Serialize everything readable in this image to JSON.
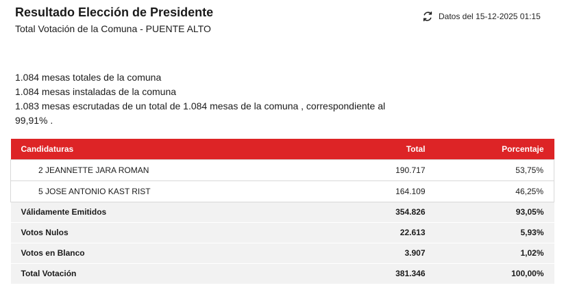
{
  "header": {
    "title": "Resultado Elección de Presidente",
    "subtitle": "Total Votación de la Comuna - PUENTE ALTO"
  },
  "update": {
    "icon": "refresh-icon",
    "text": "Datos del 15-12-2025 01:15"
  },
  "info": {
    "line1": "1.084 mesas totales de la comuna",
    "line2": "1.084 mesas instaladas de la comuna",
    "line3": "1.083 mesas escrutadas de un total de 1.084 mesas de la comuna , correspondiente al 99,91% ."
  },
  "table": {
    "headers": {
      "name": "Candidaturas",
      "total": "Total",
      "percent": "Porcentaje"
    },
    "candidates": [
      {
        "name": "2 JEANNETTE JARA ROMAN",
        "total": "190.717",
        "percent": "53,75%"
      },
      {
        "name": "5 JOSE ANTONIO KAST RIST",
        "total": "164.109",
        "percent": "46,25%"
      }
    ],
    "summary": [
      {
        "name": "Válidamente Emitidos",
        "total": "354.826",
        "percent": "93,05%"
      },
      {
        "name": "Votos Nulos",
        "total": "22.613",
        "percent": "5,93%"
      },
      {
        "name": "Votos en Blanco",
        "total": "3.907",
        "percent": "1,02%"
      },
      {
        "name": "Total Votación",
        "total": "381.346",
        "percent": "100,00%"
      }
    ]
  },
  "colors": {
    "header_bg": "#dd2426",
    "summary_bg": "#f2f2f2"
  }
}
